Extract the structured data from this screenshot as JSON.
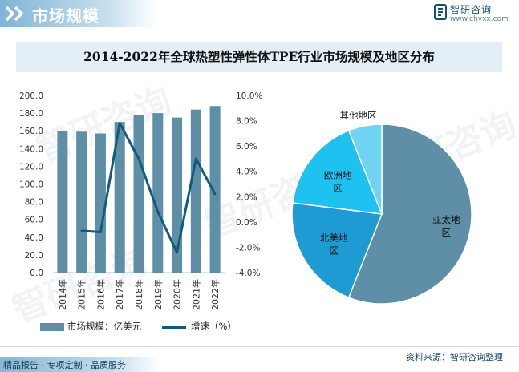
{
  "header": {
    "title": "市场规模"
  },
  "logo": {
    "name": "智研咨询",
    "url": "www.chyxx.com"
  },
  "chart_title": "2014-2022年全球热塑性弹性体TPE行业市场规模及地区分布",
  "chart_data": [
    {
      "type": "bar",
      "categories": [
        "2014年",
        "2015年",
        "2016年",
        "2017年",
        "2018年",
        "2019年",
        "2020年",
        "2021年",
        "2022年"
      ],
      "series": [
        {
          "name": "市场规模：亿美元",
          "type": "bar",
          "axis": "left",
          "values": [
            160,
            159,
            157,
            170,
            178,
            180,
            175,
            184,
            188
          ]
        },
        {
          "name": "增速（%）",
          "type": "line",
          "axis": "right",
          "values": [
            null,
            -0.7,
            -0.8,
            7.8,
            5.0,
            0.8,
            -2.4,
            5.0,
            2.2
          ]
        }
      ],
      "y_left": {
        "ticks": [
          "0.0",
          "20.0",
          "40.0",
          "60.0",
          "80.0",
          "100.0",
          "120.0",
          "140.0",
          "160.0",
          "180.0",
          "200.0"
        ],
        "ylim": [
          0,
          200
        ]
      },
      "y_right": {
        "ticks": [
          "-4.0%",
          "-2.0%",
          "0.0%",
          "2.0%",
          "4.0%",
          "6.0%",
          "8.0%",
          "10.0%"
        ],
        "ylim": [
          -4,
          10
        ]
      },
      "colors": {
        "bar": "#5e8fa6",
        "line": "#125c7b"
      }
    },
    {
      "type": "pie",
      "slices": [
        {
          "label": "亚太地区",
          "value": 56,
          "color": "#5e8fa6"
        },
        {
          "label": "北美地区",
          "value": 21,
          "color": "#1f9bd4"
        },
        {
          "label": "欧洲地区",
          "value": 17,
          "color": "#1ec1f0"
        },
        {
          "label": "其他地区",
          "value": 6,
          "color": "#6fd3f3"
        }
      ]
    }
  ],
  "legend": {
    "bar_label": "市场规模：亿美元",
    "line_label": "增速（%）"
  },
  "footer": {
    "source": "资料来源：智研咨询整理",
    "tagline": "精品报告 · 专项定制 · 品质服务"
  },
  "watermark": "智研咨询"
}
